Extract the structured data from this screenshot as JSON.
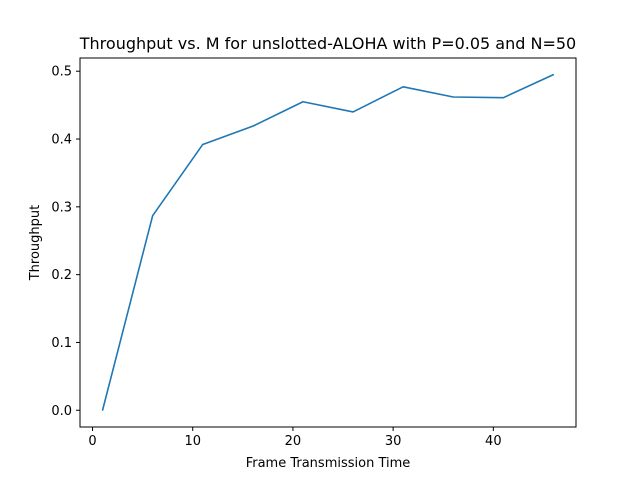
{
  "chart_data": {
    "type": "line",
    "title": "Throughput vs. M for unslotted-ALOHA with P=0.05 and N=50",
    "xlabel": "Frame Transmission Time",
    "ylabel": "Throughput",
    "xlim": [
      -1.25,
      48.25
    ],
    "ylim": [
      -0.0247,
      0.5195
    ],
    "xticks": [
      0,
      10,
      20,
      30,
      40
    ],
    "yticks": [
      0.0,
      0.1,
      0.2,
      0.3,
      0.4,
      0.5
    ],
    "xtick_labels": [
      "0",
      "10",
      "20",
      "30",
      "40"
    ],
    "ytick_labels": [
      "0.0",
      "0.1",
      "0.2",
      "0.3",
      "0.4",
      "0.5"
    ],
    "grid": false,
    "line_color": "#1f77b4",
    "series": [
      {
        "x": [
          1,
          6,
          11,
          16,
          21,
          26,
          31,
          36,
          41,
          46
        ],
        "y": [
          0.0,
          0.287,
          0.392,
          0.419,
          0.455,
          0.44,
          0.477,
          0.462,
          0.461,
          0.495
        ]
      }
    ]
  }
}
